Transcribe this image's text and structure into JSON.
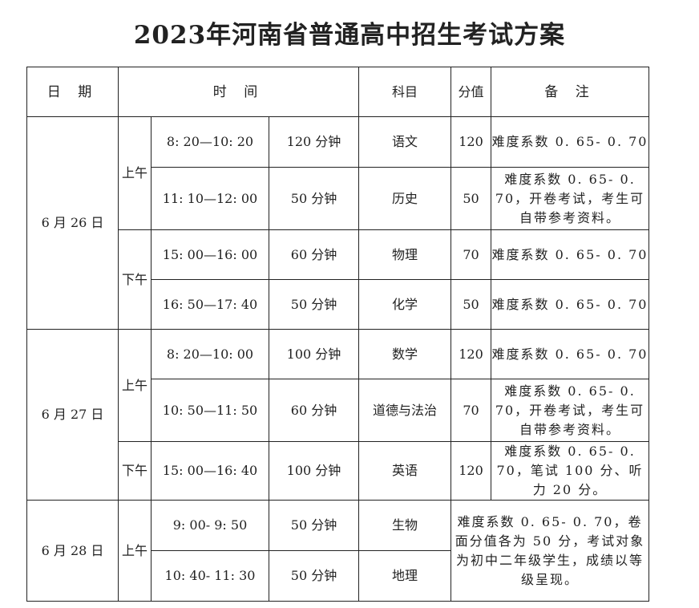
{
  "title": "2023年河南省普通高中招生考试方案",
  "headers": {
    "date": "日 期",
    "time": "时 间",
    "subject": "科目",
    "score": "分值",
    "notes": "备 注"
  },
  "days": [
    {
      "date": "6 月 26 日",
      "sessions": [
        {
          "period": "上午",
          "slots": [
            {
              "time": "8: 20—10: 20",
              "duration": "120 分钟",
              "subject": "语文",
              "score": "120",
              "notes": "难度系数 0. 65- 0. 70"
            },
            {
              "time": "11: 10—12: 00",
              "duration": "50 分钟",
              "subject": "历史",
              "score": "50",
              "notes": "难度系数 0. 65- 0. 70，开卷考试，考生可自带参考资料。"
            }
          ]
        },
        {
          "period": "下午",
          "slots": [
            {
              "time": "15: 00—16: 00",
              "duration": "60 分钟",
              "subject": "物理",
              "score": "70",
              "notes": "难度系数 0. 65- 0. 70"
            },
            {
              "time": "16: 50—17: 40",
              "duration": "50 分钟",
              "subject": "化学",
              "score": "50",
              "notes": "难度系数 0. 65- 0. 70"
            }
          ]
        }
      ]
    },
    {
      "date": "6 月 27 日",
      "sessions": [
        {
          "period": "上午",
          "slots": [
            {
              "time": "8: 20—10: 00",
              "duration": "100 分钟",
              "subject": "数学",
              "score": "120",
              "notes": "难度系数 0. 65- 0. 70"
            },
            {
              "time": "10: 50—11: 50",
              "duration": "60 分钟",
              "subject": "道德与法治",
              "score": "70",
              "notes": "难度系数 0. 65- 0. 70，开卷考试，考生可自带参考资料。"
            }
          ]
        },
        {
          "period": "下午",
          "slots": [
            {
              "time": "15: 00—16: 40",
              "duration": "100 分钟",
              "subject": "英语",
              "score": "120",
              "notes": "难度系数 0. 65- 0. 70，笔试 100 分、听力 20 分。"
            }
          ]
        }
      ]
    },
    {
      "date": "6 月 28 日",
      "sessions": [
        {
          "period": "上午",
          "slots": [
            {
              "time": "9: 00- 9: 50",
              "duration": "50 分钟",
              "subject": "生物"
            },
            {
              "time": "10: 40- 11: 30",
              "duration": "50 分钟",
              "subject": "地理"
            }
          ]
        }
      ],
      "shared_notes": "难度系数 0. 65- 0. 70，卷面分值各为 50 分，考试对象为初中二年级学生，成绩以等级呈现。"
    }
  ]
}
